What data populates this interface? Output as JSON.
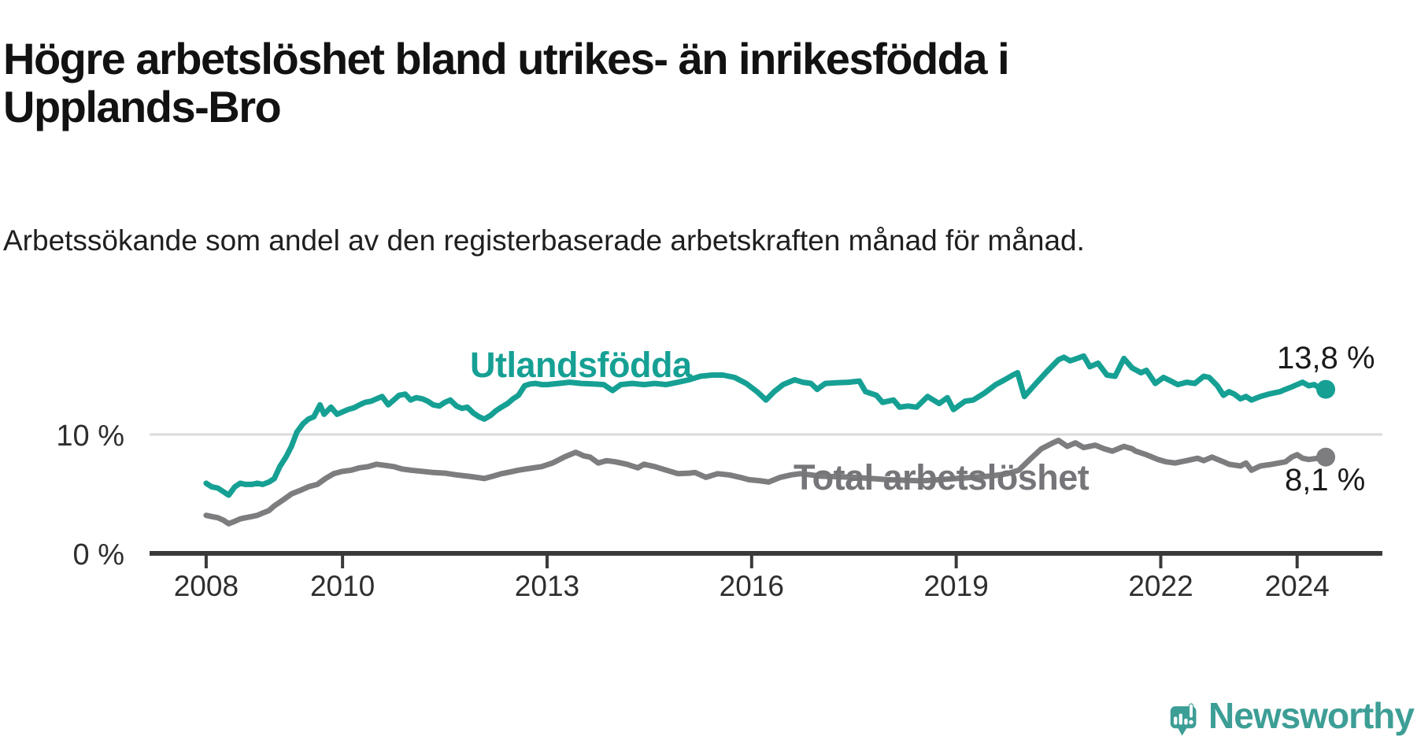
{
  "header": {
    "title": "Högre arbetslöshet bland utrikes- än inrikesfödda i Upplands-Bro",
    "subtitle": "Arbetssökande som andel av den registerbaserade arbetskraften månad för månad."
  },
  "chart_data": {
    "type": "line",
    "title": "Högre arbetslöshet bland utrikes- än inrikesfödda i Upplands-Bro",
    "subtitle": "Arbetssökande som andel av den registerbaserade arbetskraften månad för månad.",
    "x_axis": {
      "domain": [
        2007.17,
        2025.25
      ],
      "ticks": [
        2008,
        2010,
        2013,
        2016,
        2019,
        2022,
        2024
      ],
      "grid": false
    },
    "y_axis": {
      "unit": "%",
      "ticks": [
        {
          "value": 0,
          "label": "0 %",
          "gridline": false
        },
        {
          "value": 10,
          "label": "10 %",
          "gridline": true
        }
      ]
    },
    "series": [
      {
        "name": "Utlandsfödda",
        "color": "#16a094",
        "end_label": "13,8 %",
        "end_value": 13.8,
        "points": [
          [
            2008.0,
            5.9
          ],
          [
            2008.08,
            5.6
          ],
          [
            2008.17,
            5.5
          ],
          [
            2008.25,
            5.2
          ],
          [
            2008.33,
            4.9
          ],
          [
            2008.42,
            5.6
          ],
          [
            2008.5,
            5.9
          ],
          [
            2008.58,
            5.8
          ],
          [
            2008.67,
            5.8
          ],
          [
            2008.75,
            5.9
          ],
          [
            2008.83,
            5.8
          ],
          [
            2008.92,
            6.0
          ],
          [
            2009.0,
            6.3
          ],
          [
            2009.08,
            7.3
          ],
          [
            2009.17,
            8.1
          ],
          [
            2009.25,
            9.0
          ],
          [
            2009.33,
            10.2
          ],
          [
            2009.42,
            10.9
          ],
          [
            2009.5,
            11.3
          ],
          [
            2009.58,
            11.5
          ],
          [
            2009.67,
            12.5
          ],
          [
            2009.73,
            11.7
          ],
          [
            2009.83,
            12.3
          ],
          [
            2009.92,
            11.7
          ],
          [
            2010.0,
            11.9
          ],
          [
            2010.08,
            12.1
          ],
          [
            2010.17,
            12.25
          ],
          [
            2010.25,
            12.5
          ],
          [
            2010.33,
            12.7
          ],
          [
            2010.42,
            12.8
          ],
          [
            2010.5,
            13.0
          ],
          [
            2010.58,
            13.2
          ],
          [
            2010.67,
            12.5
          ],
          [
            2010.75,
            12.9
          ],
          [
            2010.83,
            13.3
          ],
          [
            2010.92,
            13.4
          ],
          [
            2011.0,
            12.9
          ],
          [
            2011.08,
            13.1
          ],
          [
            2011.17,
            13.0
          ],
          [
            2011.25,
            12.8
          ],
          [
            2011.33,
            12.5
          ],
          [
            2011.42,
            12.4
          ],
          [
            2011.5,
            12.7
          ],
          [
            2011.58,
            12.9
          ],
          [
            2011.67,
            12.4
          ],
          [
            2011.75,
            12.2
          ],
          [
            2011.83,
            12.3
          ],
          [
            2011.92,
            11.8
          ],
          [
            2012.0,
            11.5
          ],
          [
            2012.08,
            11.3
          ],
          [
            2012.17,
            11.6
          ],
          [
            2012.25,
            12.0
          ],
          [
            2012.33,
            12.3
          ],
          [
            2012.42,
            12.6
          ],
          [
            2012.5,
            13.0
          ],
          [
            2012.58,
            13.3
          ],
          [
            2012.67,
            14.1
          ],
          [
            2012.75,
            14.25
          ],
          [
            2012.83,
            14.3
          ],
          [
            2012.92,
            14.2
          ],
          [
            2013.0,
            14.2
          ],
          [
            2013.17,
            14.3
          ],
          [
            2013.33,
            14.4
          ],
          [
            2013.5,
            14.3
          ],
          [
            2013.67,
            14.25
          ],
          [
            2013.83,
            14.2
          ],
          [
            2013.96,
            13.7
          ],
          [
            2014.08,
            14.2
          ],
          [
            2014.25,
            14.3
          ],
          [
            2014.42,
            14.2
          ],
          [
            2014.58,
            14.3
          ],
          [
            2014.75,
            14.2
          ],
          [
            2014.92,
            14.4
          ],
          [
            2015.08,
            14.6
          ],
          [
            2015.25,
            14.9
          ],
          [
            2015.42,
            15.0
          ],
          [
            2015.58,
            15.0
          ],
          [
            2015.75,
            14.8
          ],
          [
            2015.92,
            14.3
          ],
          [
            2016.08,
            13.6
          ],
          [
            2016.21,
            12.9
          ],
          [
            2016.33,
            13.6
          ],
          [
            2016.46,
            14.2
          ],
          [
            2016.63,
            14.6
          ],
          [
            2016.75,
            14.4
          ],
          [
            2016.87,
            14.3
          ],
          [
            2016.96,
            13.8
          ],
          [
            2017.08,
            14.3
          ],
          [
            2017.25,
            14.35
          ],
          [
            2017.42,
            14.4
          ],
          [
            2017.58,
            14.5
          ],
          [
            2017.67,
            13.6
          ],
          [
            2017.83,
            13.3
          ],
          [
            2017.92,
            12.7
          ],
          [
            2018.08,
            12.9
          ],
          [
            2018.17,
            12.3
          ],
          [
            2018.29,
            12.4
          ],
          [
            2018.42,
            12.3
          ],
          [
            2018.58,
            13.2
          ],
          [
            2018.75,
            12.6
          ],
          [
            2018.87,
            13.1
          ],
          [
            2018.96,
            12.1
          ],
          [
            2019.13,
            12.8
          ],
          [
            2019.25,
            12.9
          ],
          [
            2019.42,
            13.5
          ],
          [
            2019.58,
            14.2
          ],
          [
            2019.71,
            14.6
          ],
          [
            2019.83,
            15.0
          ],
          [
            2019.9,
            15.2
          ],
          [
            2020.0,
            13.2
          ],
          [
            2020.17,
            14.3
          ],
          [
            2020.33,
            15.3
          ],
          [
            2020.5,
            16.3
          ],
          [
            2020.58,
            16.5
          ],
          [
            2020.67,
            16.2
          ],
          [
            2020.75,
            16.35
          ],
          [
            2020.87,
            16.6
          ],
          [
            2020.96,
            15.7
          ],
          [
            2021.08,
            16.0
          ],
          [
            2021.21,
            15.0
          ],
          [
            2021.33,
            14.9
          ],
          [
            2021.46,
            16.4
          ],
          [
            2021.58,
            15.6
          ],
          [
            2021.71,
            15.2
          ],
          [
            2021.79,
            15.4
          ],
          [
            2021.92,
            14.3
          ],
          [
            2022.04,
            14.8
          ],
          [
            2022.13,
            14.55
          ],
          [
            2022.25,
            14.2
          ],
          [
            2022.38,
            14.4
          ],
          [
            2022.5,
            14.3
          ],
          [
            2022.63,
            14.9
          ],
          [
            2022.71,
            14.8
          ],
          [
            2022.83,
            14.1
          ],
          [
            2022.92,
            13.3
          ],
          [
            2023.0,
            13.6
          ],
          [
            2023.08,
            13.4
          ],
          [
            2023.17,
            13.0
          ],
          [
            2023.25,
            13.2
          ],
          [
            2023.33,
            12.9
          ],
          [
            2023.46,
            13.2
          ],
          [
            2023.58,
            13.4
          ],
          [
            2023.75,
            13.6
          ],
          [
            2023.83,
            13.8
          ],
          [
            2023.92,
            14.0
          ],
          [
            2024.0,
            14.2
          ],
          [
            2024.08,
            14.4
          ],
          [
            2024.17,
            14.1
          ],
          [
            2024.25,
            14.2
          ],
          [
            2024.33,
            13.9
          ],
          [
            2024.42,
            13.8
          ]
        ]
      },
      {
        "name": "Total arbetslöshet",
        "color": "#7d7d80",
        "end_label": "8,1 %",
        "end_value": 8.1,
        "points": [
          [
            2008.0,
            3.2
          ],
          [
            2008.08,
            3.1
          ],
          [
            2008.17,
            3.0
          ],
          [
            2008.25,
            2.8
          ],
          [
            2008.33,
            2.5
          ],
          [
            2008.42,
            2.7
          ],
          [
            2008.5,
            2.9
          ],
          [
            2008.58,
            3.0
          ],
          [
            2008.67,
            3.1
          ],
          [
            2008.75,
            3.2
          ],
          [
            2008.83,
            3.4
          ],
          [
            2008.92,
            3.6
          ],
          [
            2009.0,
            4.0
          ],
          [
            2009.13,
            4.5
          ],
          [
            2009.25,
            5.0
          ],
          [
            2009.38,
            5.3
          ],
          [
            2009.5,
            5.6
          ],
          [
            2009.63,
            5.8
          ],
          [
            2009.75,
            6.3
          ],
          [
            2009.87,
            6.7
          ],
          [
            2010.0,
            6.9
          ],
          [
            2010.13,
            7.0
          ],
          [
            2010.25,
            7.2
          ],
          [
            2010.38,
            7.3
          ],
          [
            2010.5,
            7.5
          ],
          [
            2010.63,
            7.4
          ],
          [
            2010.75,
            7.3
          ],
          [
            2010.87,
            7.1
          ],
          [
            2011.0,
            7.0
          ],
          [
            2011.17,
            6.9
          ],
          [
            2011.33,
            6.8
          ],
          [
            2011.5,
            6.75
          ],
          [
            2011.67,
            6.6
          ],
          [
            2011.83,
            6.5
          ],
          [
            2011.96,
            6.4
          ],
          [
            2012.08,
            6.3
          ],
          [
            2012.21,
            6.5
          ],
          [
            2012.33,
            6.7
          ],
          [
            2012.46,
            6.85
          ],
          [
            2012.58,
            7.0
          ],
          [
            2012.75,
            7.15
          ],
          [
            2012.92,
            7.3
          ],
          [
            2013.08,
            7.6
          ],
          [
            2013.25,
            8.1
          ],
          [
            2013.42,
            8.5
          ],
          [
            2013.54,
            8.2
          ],
          [
            2013.63,
            8.1
          ],
          [
            2013.75,
            7.6
          ],
          [
            2013.87,
            7.8
          ],
          [
            2014.0,
            7.7
          ],
          [
            2014.17,
            7.5
          ],
          [
            2014.33,
            7.2
          ],
          [
            2014.42,
            7.5
          ],
          [
            2014.58,
            7.3
          ],
          [
            2014.75,
            7.0
          ],
          [
            2014.92,
            6.7
          ],
          [
            2015.08,
            6.75
          ],
          [
            2015.17,
            6.8
          ],
          [
            2015.33,
            6.4
          ],
          [
            2015.5,
            6.7
          ],
          [
            2015.67,
            6.6
          ],
          [
            2015.83,
            6.4
          ],
          [
            2015.96,
            6.2
          ],
          [
            2016.13,
            6.1
          ],
          [
            2016.25,
            6.0
          ],
          [
            2016.42,
            6.4
          ],
          [
            2016.58,
            6.6
          ],
          [
            2016.71,
            6.7
          ],
          [
            2016.87,
            6.6
          ],
          [
            2017.0,
            6.5
          ],
          [
            2017.25,
            6.45
          ],
          [
            2017.5,
            6.4
          ],
          [
            2017.75,
            6.3
          ],
          [
            2018.0,
            6.2
          ],
          [
            2018.25,
            6.15
          ],
          [
            2018.5,
            6.1
          ],
          [
            2018.75,
            6.2
          ],
          [
            2019.0,
            6.3
          ],
          [
            2019.25,
            6.4
          ],
          [
            2019.5,
            6.5
          ],
          [
            2019.75,
            6.7
          ],
          [
            2019.92,
            7.0
          ],
          [
            2020.08,
            7.9
          ],
          [
            2020.25,
            8.8
          ],
          [
            2020.42,
            9.3
          ],
          [
            2020.5,
            9.5
          ],
          [
            2020.63,
            9.0
          ],
          [
            2020.75,
            9.3
          ],
          [
            2020.87,
            8.9
          ],
          [
            2021.04,
            9.1
          ],
          [
            2021.17,
            8.8
          ],
          [
            2021.29,
            8.6
          ],
          [
            2021.46,
            9.0
          ],
          [
            2021.58,
            8.8
          ],
          [
            2021.63,
            8.6
          ],
          [
            2021.79,
            8.3
          ],
          [
            2021.96,
            7.9
          ],
          [
            2022.08,
            7.7
          ],
          [
            2022.21,
            7.6
          ],
          [
            2022.38,
            7.8
          ],
          [
            2022.54,
            8.0
          ],
          [
            2022.63,
            7.8
          ],
          [
            2022.75,
            8.1
          ],
          [
            2022.92,
            7.7
          ],
          [
            2023.0,
            7.5
          ],
          [
            2023.17,
            7.35
          ],
          [
            2023.25,
            7.6
          ],
          [
            2023.33,
            7.0
          ],
          [
            2023.46,
            7.35
          ],
          [
            2023.63,
            7.5
          ],
          [
            2023.83,
            7.7
          ],
          [
            2023.92,
            8.1
          ],
          [
            2024.0,
            8.3
          ],
          [
            2024.08,
            8.0
          ],
          [
            2024.17,
            7.9
          ],
          [
            2024.3,
            8.0
          ],
          [
            2024.42,
            8.1
          ]
        ]
      }
    ],
    "legend_position": "inline-labels",
    "grid": "horizontal-10-only"
  },
  "style": {
    "accent_teal": "#16a094",
    "line_gray": "#7d7d80",
    "axis_color": "#3a3a3a",
    "gridline_color": "#dbdbdb",
    "tick_label_color": "#2e2e2e"
  },
  "branding": {
    "name": "Newsworthy",
    "color": "#3d9e96"
  }
}
